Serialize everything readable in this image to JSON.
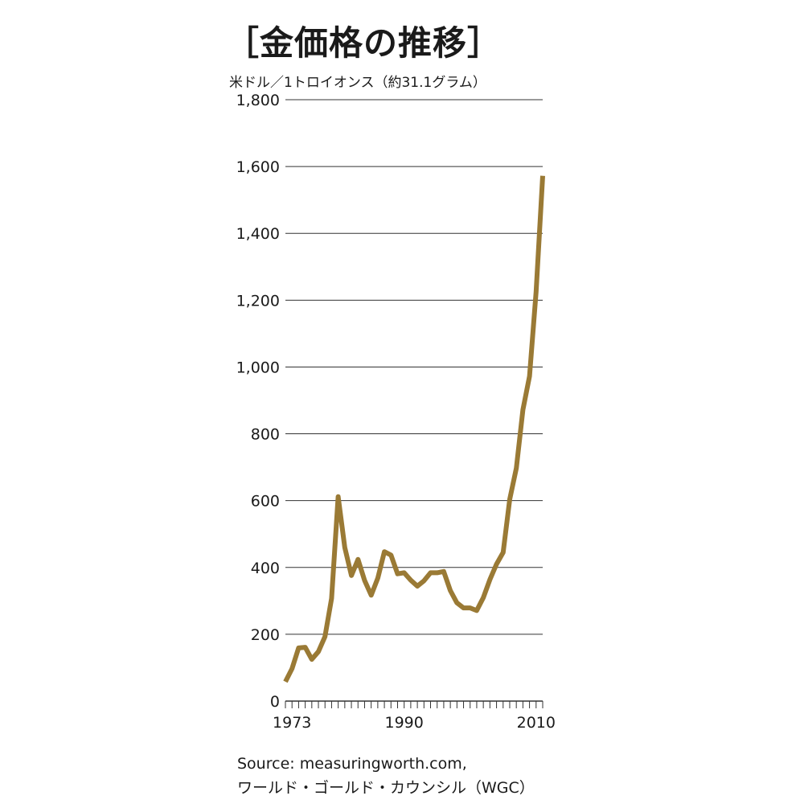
{
  "title": "［金価格の推移］",
  "unit_label": "米ドル／1トロイオンス（約31.1グラム）",
  "source": {
    "line1": "Source: measuringworth.com,",
    "line2": "ワールド・ゴールド・カウンシル（WGC）"
  },
  "colors": {
    "line": "#9a7a35",
    "grid": "#333333",
    "text": "#1a1a1a"
  },
  "chart_data": {
    "type": "line",
    "ylim": [
      0,
      1800
    ],
    "xlim": [
      1972,
      2011
    ],
    "y_ticks": [
      0,
      200,
      400,
      600,
      800,
      1000,
      1200,
      1400,
      1600,
      1800
    ],
    "y_tick_labels": [
      "0",
      "200",
      "400",
      "600",
      "800",
      "1,000",
      "1,200",
      "1,400",
      "1,600",
      "1,800"
    ],
    "x_tick_labels": [
      {
        "value": 1973,
        "label": "1973"
      },
      {
        "value": 1990,
        "label": "1990"
      },
      {
        "value": 2010,
        "label": "2010"
      }
    ],
    "grid": "horizontal",
    "series": [
      {
        "x": [
          1972,
          1973,
          1974,
          1975,
          1976,
          1977,
          1978,
          1979,
          1980,
          1981,
          1982,
          1983,
          1984,
          1985,
          1986,
          1987,
          1988,
          1989,
          1990,
          1991,
          1992,
          1993,
          1994,
          1995,
          1996,
          1997,
          1998,
          1999,
          2000,
          2001,
          2002,
          2003,
          2004,
          2005,
          2006,
          2007,
          2008,
          2009,
          2010,
          2011
        ],
        "values": [
          58,
          97,
          159,
          161,
          125,
          148,
          193,
          307,
          612,
          460,
          376,
          424,
          361,
          317,
          368,
          447,
          437,
          381,
          384,
          362,
          344,
          360,
          384,
          384,
          388,
          331,
          294,
          279,
          279,
          271,
          310,
          364,
          410,
          445,
          604,
          697,
          872,
          972,
          1225,
          1572
        ]
      }
    ]
  }
}
